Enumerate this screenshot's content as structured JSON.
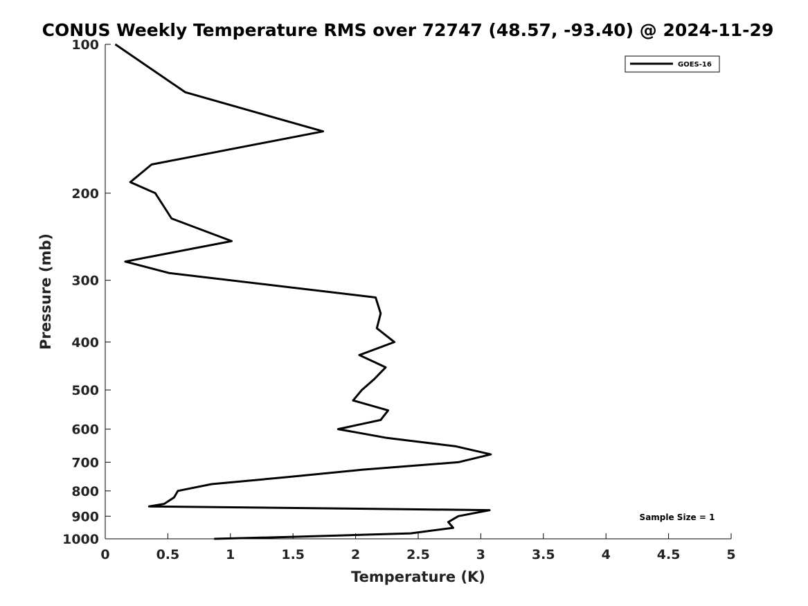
{
  "chart_data": {
    "type": "line",
    "title": "CONUS Weekly Temperature RMS over 72747 (48.57, -93.40) @ 2024-11-29",
    "xlabel": "Temperature (K)",
    "ylabel": "Pressure (mb)",
    "xlim": [
      0,
      5
    ],
    "ylim": [
      1000,
      100
    ],
    "y_scale": "log",
    "x_ticks": [
      "0",
      "0.5",
      "1",
      "1.5",
      "2",
      "2.5",
      "3",
      "3.5",
      "4",
      "4.5",
      "5"
    ],
    "y_ticks": [
      "100",
      "200",
      "300",
      "400",
      "500",
      "600",
      "700",
      "800",
      "900",
      "1000"
    ],
    "grid": false,
    "legend_position": "top-right",
    "annotation": "Sample Size = 1",
    "series": [
      {
        "name": "GOES-16",
        "color": "#000000",
        "points": [
          [
            0.08,
            100
          ],
          [
            0.64,
            125
          ],
          [
            1.74,
            150
          ],
          [
            0.37,
            175
          ],
          [
            0.2,
            190
          ],
          [
            0.4,
            200
          ],
          [
            0.53,
            225
          ],
          [
            1.01,
            250
          ],
          [
            0.16,
            275
          ],
          [
            0.51,
            290
          ],
          [
            2.16,
            325
          ],
          [
            2.2,
            350
          ],
          [
            2.17,
            375
          ],
          [
            2.31,
            400
          ],
          [
            2.03,
            425
          ],
          [
            2.24,
            450
          ],
          [
            2.15,
            475
          ],
          [
            2.05,
            500
          ],
          [
            1.98,
            525
          ],
          [
            2.26,
            550
          ],
          [
            2.2,
            575
          ],
          [
            1.86,
            600
          ],
          [
            2.25,
            625
          ],
          [
            2.8,
            650
          ],
          [
            3.08,
            675
          ],
          [
            2.82,
            700
          ],
          [
            2.05,
            725
          ],
          [
            1.46,
            750
          ],
          [
            0.85,
            775
          ],
          [
            0.58,
            800
          ],
          [
            0.55,
            825
          ],
          [
            0.47,
            850
          ],
          [
            0.35,
            860
          ],
          [
            3.07,
            875
          ],
          [
            2.82,
            900
          ],
          [
            2.74,
            925
          ],
          [
            2.78,
            950
          ],
          [
            2.44,
            975
          ],
          [
            1.55,
            990
          ],
          [
            0.87,
            1000
          ]
        ]
      }
    ]
  }
}
